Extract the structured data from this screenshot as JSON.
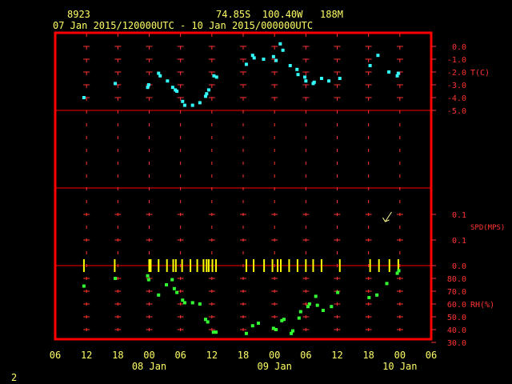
{
  "header": {
    "station": "8923",
    "location": "74.85S  100.40W   188M",
    "period": "07 Jan 2015/120000UTC - 10 Jan 2015/000000UTC"
  },
  "footer": {
    "page_number": "2"
  },
  "colors": {
    "frame": "#ff0000",
    "grid_cross": "#ff3333",
    "text": "#ffff66",
    "axis_text": "#ff3333",
    "temperature": "#33ffff",
    "humidity": "#33ff33",
    "wind_ticks": "#ffff00",
    "wind_arrow": "#ffff99"
  },
  "chart_data": {
    "type": "scatter",
    "x_axis": {
      "unit": "hour",
      "range": [
        -18,
        54
      ],
      "tick_values": [
        -18,
        -12,
        -6,
        0,
        6,
        12,
        18,
        24,
        30,
        36,
        42,
        48,
        54
      ],
      "tick_labels": [
        "06",
        "12",
        "18",
        "00",
        "06",
        "12",
        "18",
        "00",
        "06",
        "12",
        "18",
        "00",
        "06"
      ],
      "date_labels": [
        {
          "x": 0,
          "label": "08 Jan"
        },
        {
          "x": 24,
          "label": "09 Jan"
        },
        {
          "x": 48,
          "label": "10 Jan"
        }
      ]
    },
    "temperature": {
      "label": "T(C)",
      "range": [
        -5,
        0
      ],
      "tick_values": [
        0,
        -1,
        -2,
        -3,
        -4,
        -5
      ],
      "tick_labels": [
        "0.0",
        "-1.0",
        "-2.0",
        "-3.0",
        "-4.0",
        "-5.0"
      ],
      "points": [
        [
          -12.5,
          -4.0
        ],
        [
          -6.5,
          -2.9
        ],
        [
          -0.3,
          -3.2
        ],
        [
          -0.1,
          -3.0
        ],
        [
          1.8,
          -2.1
        ],
        [
          2.1,
          -2.3
        ],
        [
          3.5,
          -2.7
        ],
        [
          4.5,
          -3.2
        ],
        [
          5.0,
          -3.4
        ],
        [
          5.3,
          -3.5
        ],
        [
          6.4,
          -4.3
        ],
        [
          6.8,
          -4.6
        ],
        [
          8.3,
          -4.6
        ],
        [
          9.7,
          -4.4
        ],
        [
          10.8,
          -3.9
        ],
        [
          11.0,
          -3.7
        ],
        [
          11.4,
          -3.4
        ],
        [
          12.4,
          -2.3
        ],
        [
          12.9,
          -2.4
        ],
        [
          18.6,
          -1.4
        ],
        [
          19.8,
          -0.7
        ],
        [
          20.1,
          -0.9
        ],
        [
          21.9,
          -1.0
        ],
        [
          23.8,
          -0.8
        ],
        [
          24.3,
          -1.1
        ],
        [
          25.1,
          0.2
        ],
        [
          25.6,
          -0.3
        ],
        [
          27.0,
          -1.5
        ],
        [
          28.3,
          -1.8
        ],
        [
          28.5,
          -2.2
        ],
        [
          29.8,
          -2.4
        ],
        [
          30.0,
          -2.7
        ],
        [
          31.4,
          -2.9
        ],
        [
          31.6,
          -2.8
        ],
        [
          33.0,
          -2.5
        ],
        [
          34.4,
          -2.7
        ],
        [
          36.5,
          -2.5
        ],
        [
          42.3,
          -1.5
        ],
        [
          43.8,
          -0.7
        ],
        [
          45.9,
          -2.0
        ],
        [
          47.5,
          -2.3
        ],
        [
          47.7,
          -2.1
        ]
      ]
    },
    "wind_speed": {
      "label": "SPD(MPS)",
      "tick_labels": [
        "0.1",
        "0.1",
        "0.0"
      ],
      "observation_times": [
        -12.5,
        -6.6,
        0,
        0.3,
        1.8,
        3.4,
        4.6,
        5.1,
        6.3,
        7.9,
        9.2,
        10.4,
        11.0,
        11.4,
        12.1,
        12.8,
        18.6,
        20.0,
        22.0,
        23.6,
        24.6,
        25.2,
        26.8,
        28.4,
        30.0,
        31.4,
        33.0,
        36.5,
        42.3,
        44.0,
        46.0,
        47.7
      ],
      "vector": {
        "time": 45.5,
        "speed": 0.1,
        "direction": "toward lower-left"
      }
    },
    "relative_humidity": {
      "label": "RH(%)",
      "range": [
        30,
        80
      ],
      "tick_values": [
        80,
        70,
        60,
        50,
        40,
        30
      ],
      "tick_labels": [
        "80.0",
        "70.0",
        "60.0",
        "50.0",
        "40.0",
        "30.0"
      ],
      "points": [
        [
          -12.5,
          74
        ],
        [
          -6.5,
          80
        ],
        [
          -0.3,
          82
        ],
        [
          -0.1,
          79
        ],
        [
          1.8,
          67
        ],
        [
          3.3,
          75
        ],
        [
          4.4,
          79
        ],
        [
          4.8,
          72
        ],
        [
          5.3,
          69
        ],
        [
          6.4,
          63
        ],
        [
          6.8,
          61
        ],
        [
          8.3,
          61
        ],
        [
          9.7,
          60
        ],
        [
          10.8,
          48
        ],
        [
          11.2,
          46
        ],
        [
          12.3,
          38
        ],
        [
          12.8,
          38
        ],
        [
          18.6,
          37
        ],
        [
          19.8,
          43
        ],
        [
          20.9,
          45
        ],
        [
          23.8,
          41
        ],
        [
          24.3,
          40
        ],
        [
          25.4,
          47
        ],
        [
          25.8,
          48
        ],
        [
          27.2,
          37
        ],
        [
          27.5,
          39
        ],
        [
          28.7,
          49
        ],
        [
          29.0,
          54
        ],
        [
          30.4,
          58
        ],
        [
          30.7,
          60
        ],
        [
          31.9,
          66
        ],
        [
          32.2,
          59
        ],
        [
          33.3,
          55
        ],
        [
          34.9,
          58
        ],
        [
          36.1,
          69
        ],
        [
          42.1,
          65
        ],
        [
          43.6,
          67
        ],
        [
          45.5,
          76
        ],
        [
          47.5,
          84
        ],
        [
          47.8,
          86
        ]
      ]
    }
  }
}
